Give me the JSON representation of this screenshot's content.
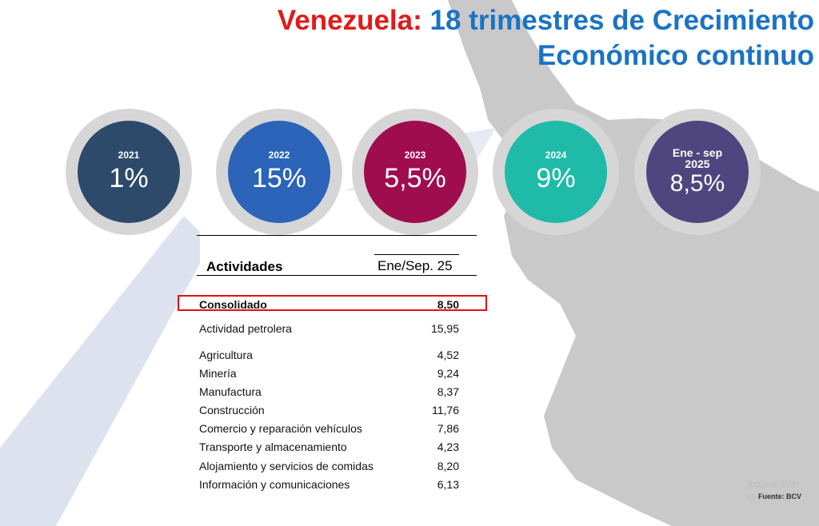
{
  "title": {
    "country": "Venezuela:",
    "line1": "18 trimestres de Crecimiento",
    "line2": "Económico continuo"
  },
  "circles": [
    {
      "year": "2021",
      "value": "1%",
      "color": "#2e4a6b"
    },
    {
      "year": "2022",
      "value": "15%",
      "color": "#2b64b8"
    },
    {
      "year": "2023",
      "value": "5,5%",
      "color": "#a00d4e"
    },
    {
      "year": "2024",
      "value": "9%",
      "color": "#1fbba8"
    },
    {
      "year_line1": "Ene - sep",
      "year_line2": "2025",
      "value": "8,5%",
      "color": "#4f467f"
    }
  ],
  "table": {
    "header_activity": "Actividades",
    "header_period": "Ene/Sep. 25",
    "rows": [
      {
        "label": "Consolidado",
        "value": "8,50"
      },
      {
        "label": "Actividad petrolera",
        "value": "15,95"
      },
      {
        "label": "Agricultura",
        "value": "4,52"
      },
      {
        "label": "Minería",
        "value": "9,24"
      },
      {
        "label": "Manufactura",
        "value": "8,37"
      },
      {
        "label": "Construcción",
        "value": "11,76"
      },
      {
        "label": "Comercio y reparación vehículos",
        "value": "7,86"
      },
      {
        "label": "Transporte y almacenamiento",
        "value": "4,23"
      },
      {
        "label": "Alojamiento y servicios de comidas",
        "value": "8,20"
      },
      {
        "label": "Información y comunicaciones",
        "value": "6,13"
      }
    ]
  },
  "watermark": {
    "line1": "Activar Win",
    "line2": "Ve a Configura"
  },
  "source": "Fuente: BCV"
}
